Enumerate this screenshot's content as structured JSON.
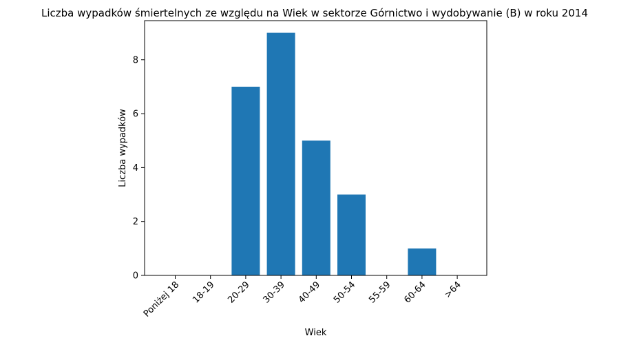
{
  "chart_data": {
    "type": "bar",
    "title": "Liczba wypadków śmiertelnych ze względu na Wiek w sektorze Górnictwo i wydobywanie (B)   w roku 2014",
    "xlabel": "Wiek",
    "ylabel": "Liczba wypadków",
    "categories": [
      "Poniżej 18",
      "18-19",
      "20-29",
      "30-39",
      "40-49",
      "50-54",
      "55-59",
      "60-64",
      ">64"
    ],
    "values": [
      0,
      0,
      7,
      9,
      5,
      3,
      0,
      1,
      0
    ],
    "ylim": [
      0,
      9.45
    ],
    "yticks": [
      0,
      2,
      4,
      6,
      8
    ],
    "grid": false,
    "bar_color": "#1f77b4"
  }
}
